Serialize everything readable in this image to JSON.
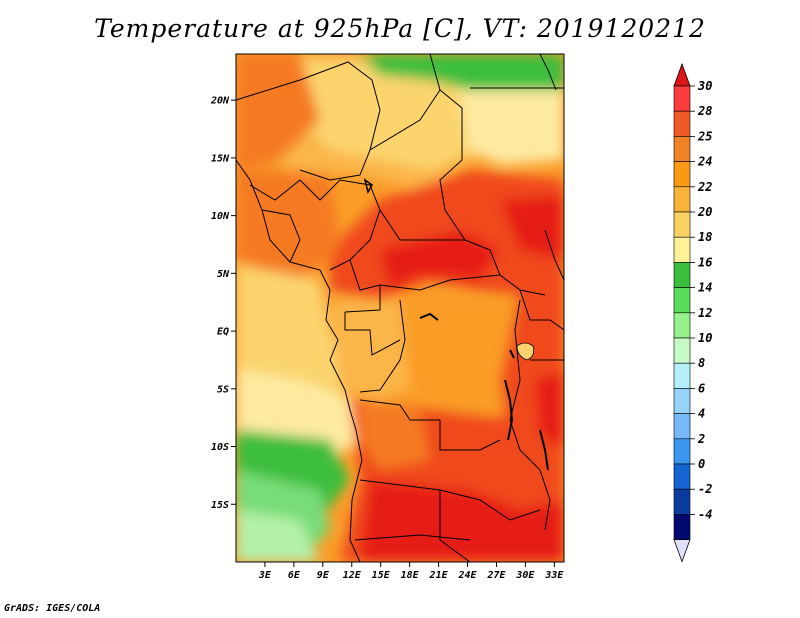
{
  "title": "Temperature at 925hPa [C], VT: 2019120212",
  "footer": "GrADS: IGES/COLA",
  "map": {
    "lon_range": [
      0,
      34
    ],
    "lat_range": [
      -20,
      24
    ],
    "lon_ticks": [
      "3E",
      "6E",
      "9E",
      "12E",
      "15E",
      "18E",
      "21E",
      "24E",
      "27E",
      "30E",
      "33E"
    ],
    "lon_tick_values": [
      3,
      6,
      9,
      12,
      15,
      18,
      21,
      24,
      27,
      30,
      33
    ],
    "lat_ticks": [
      "20N",
      "15N",
      "10N",
      "5N",
      "EQ",
      "5S",
      "10S",
      "15S"
    ],
    "lat_tick_values": [
      20,
      15,
      10,
      5,
      0,
      -5,
      -10,
      -15
    ]
  },
  "colorbar": {
    "labels": [
      "30",
      "28",
      "25",
      "24",
      "22",
      "20",
      "18",
      "16",
      "14",
      "12",
      "10",
      "8",
      "6",
      "4",
      "2",
      "0",
      "-2",
      "-4"
    ],
    "colors": [
      "#fa3c3c",
      "#f05a28",
      "#f08228",
      "#fa9a14",
      "#fab43c",
      "#fad264",
      "#fff09a",
      "#3cbe3c",
      "#5adc5a",
      "#96f08c",
      "#c8fac8",
      "#b4f0fa",
      "#96d2fa",
      "#78b9fa",
      "#3c96f0",
      "#1464d2",
      "#0a3ca0",
      "#000a6e"
    ],
    "top_arrow_color": "#dc1414",
    "bottom_arrow_color": "#e0e0ff"
  },
  "field_colors": {
    "very_hot": "#e61e14",
    "hot": "#f04a1e",
    "warm_orange": "#f57a24",
    "orange": "#fa9c28",
    "light_orange": "#fbb648",
    "yellow": "#fbd46e",
    "pale_yellow": "#fdeaa0",
    "green": "#3cbe3c",
    "light_green": "#78dc78",
    "pale_green": "#b4f0a8"
  }
}
